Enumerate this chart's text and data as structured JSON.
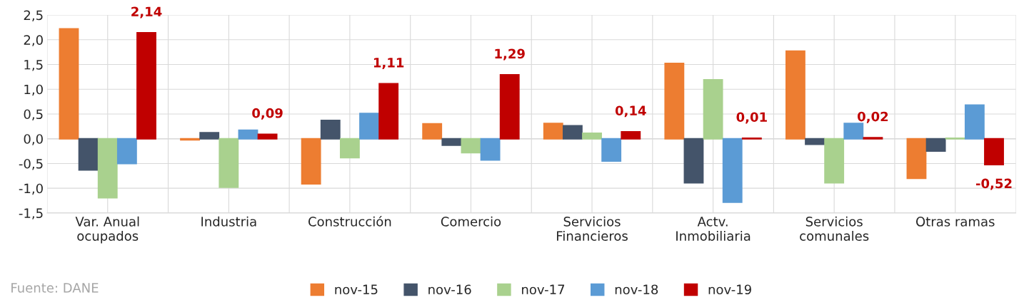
{
  "chart_data": {
    "type": "bar",
    "categories": [
      "Var. Anual\nocupados",
      "Industria",
      "Construcción",
      "Comercio",
      "Servicios\nFinancieros",
      "Actv.\nInmobiliaria",
      "Servicios\ncomunales",
      "Otras ramas"
    ],
    "series": [
      {
        "name": "nov-15",
        "color": "#ed7d31",
        "values": [
          2.22,
          -0.02,
          -0.91,
          0.3,
          0.31,
          1.52,
          1.77,
          -0.8
        ]
      },
      {
        "name": "nov-16",
        "color": "#44546a",
        "values": [
          -0.63,
          0.12,
          0.37,
          -0.13,
          0.26,
          -0.89,
          -0.11,
          -0.25
        ]
      },
      {
        "name": "nov-17",
        "color": "#a9d18e",
        "values": [
          -1.19,
          -0.98,
          -0.38,
          -0.28,
          0.11,
          1.19,
          -0.89,
          0.01
        ]
      },
      {
        "name": "nov-18",
        "color": "#5b9bd5",
        "values": [
          -0.5,
          0.17,
          0.51,
          -0.43,
          -0.45,
          -1.28,
          0.31,
          0.68
        ]
      },
      {
        "name": "nov-19",
        "color": "#c00000",
        "values": [
          2.14,
          0.09,
          1.11,
          1.29,
          0.14,
          0.01,
          0.02,
          -0.52
        ],
        "value_labels": [
          "2,14",
          "0,09",
          "1,11",
          "1,29",
          "0,14",
          "0,01",
          "0,02",
          "-0,52"
        ]
      }
    ],
    "ylim": [
      -1.5,
      2.5
    ],
    "yticks": [
      {
        "value": -1.5,
        "label": "-1,5"
      },
      {
        "value": -1.0,
        "label": "-1,0"
      },
      {
        "value": -0.5,
        "label": "-0,5"
      },
      {
        "value": 0,
        "label": "0,0"
      },
      {
        "value": 0.5,
        "label": "0,5"
      },
      {
        "value": 1.0,
        "label": "1,0"
      },
      {
        "value": 1.5,
        "label": "1,5"
      },
      {
        "value": 2.0,
        "label": "2,0"
      },
      {
        "value": 2.5,
        "label": "2,5"
      }
    ],
    "grid": true,
    "legend": "bottom",
    "annotations": [
      "Fuente: DANE"
    ]
  }
}
